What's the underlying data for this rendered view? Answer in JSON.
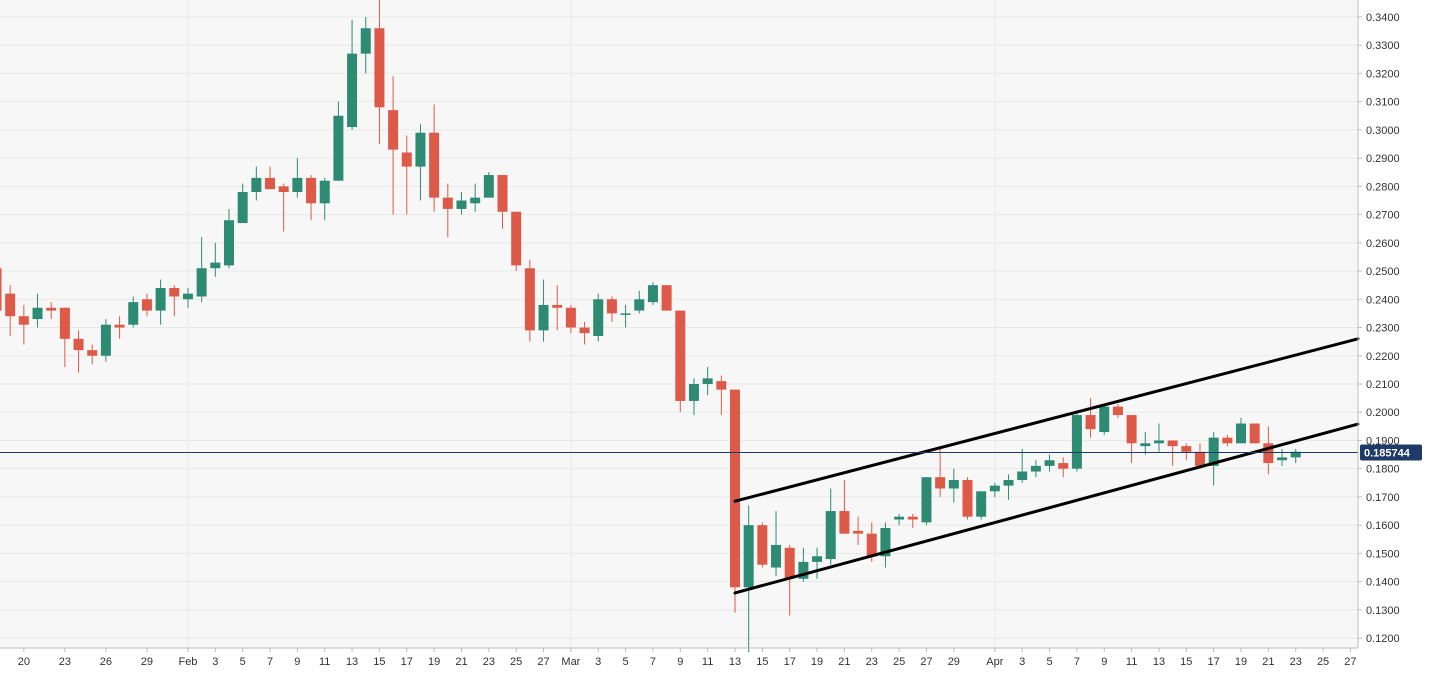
{
  "chart_data": {
    "type": "candlestick",
    "x_ticks": [
      "20",
      "23",
      "26",
      "29",
      "Feb",
      "3",
      "5",
      "7",
      "9",
      "11",
      "13",
      "15",
      "17",
      "19",
      "21",
      "23",
      "25",
      "27",
      "Mar",
      "3",
      "5",
      "7",
      "9",
      "11",
      "13",
      "15",
      "17",
      "19",
      "21",
      "23",
      "25",
      "27",
      "29",
      "Apr",
      "3",
      "5",
      "7",
      "9",
      "11",
      "13",
      "15",
      "17",
      "19",
      "21",
      "23",
      "25",
      "27"
    ],
    "y_ticks": [
      "0.3400",
      "0.3300",
      "0.3200",
      "0.3100",
      "0.3000",
      "0.2900",
      "0.2800",
      "0.2700",
      "0.2600",
      "0.2500",
      "0.2400",
      "0.2300",
      "0.2200",
      "0.2100",
      "0.2000",
      "0.1900",
      "0.1800",
      "0.1700",
      "0.1600",
      "0.1500",
      "0.1400",
      "0.1300",
      "0.1200"
    ],
    "ylim": [
      0.1165,
      0.346
    ],
    "current_price": 0.185744,
    "current_price_label": "0.185744",
    "candles": [
      {
        "date": "Jan 18",
        "o": 0.251,
        "h": 0.252,
        "l": 0.232,
        "c": 0.236
      },
      {
        "date": "Jan 19",
        "o": 0.242,
        "h": 0.245,
        "l": 0.227,
        "c": 0.234
      },
      {
        "date": "Jan 20",
        "o": 0.234,
        "h": 0.238,
        "l": 0.224,
        "c": 0.231
      },
      {
        "date": "Jan 21",
        "o": 0.233,
        "h": 0.242,
        "l": 0.23,
        "c": 0.237
      },
      {
        "date": "Jan 22",
        "o": 0.237,
        "h": 0.239,
        "l": 0.233,
        "c": 0.236
      },
      {
        "date": "Jan 23",
        "o": 0.237,
        "h": 0.237,
        "l": 0.216,
        "c": 0.226
      },
      {
        "date": "Jan 24",
        "o": 0.226,
        "h": 0.229,
        "l": 0.214,
        "c": 0.222
      },
      {
        "date": "Jan 25",
        "o": 0.222,
        "h": 0.224,
        "l": 0.217,
        "c": 0.22
      },
      {
        "date": "Jan 26",
        "o": 0.22,
        "h": 0.233,
        "l": 0.218,
        "c": 0.231
      },
      {
        "date": "Jan 27",
        "o": 0.231,
        "h": 0.234,
        "l": 0.226,
        "c": 0.23
      },
      {
        "date": "Jan 28",
        "o": 0.231,
        "h": 0.241,
        "l": 0.23,
        "c": 0.239
      },
      {
        "date": "Jan 29",
        "o": 0.24,
        "h": 0.242,
        "l": 0.234,
        "c": 0.236
      },
      {
        "date": "Jan 30",
        "o": 0.236,
        "h": 0.247,
        "l": 0.231,
        "c": 0.244
      },
      {
        "date": "Jan 31",
        "o": 0.244,
        "h": 0.245,
        "l": 0.234,
        "c": 0.241
      },
      {
        "date": "Feb 1",
        "o": 0.24,
        "h": 0.244,
        "l": 0.237,
        "c": 0.242
      },
      {
        "date": "Feb 2",
        "o": 0.241,
        "h": 0.262,
        "l": 0.239,
        "c": 0.251
      },
      {
        "date": "Feb 3",
        "o": 0.251,
        "h": 0.26,
        "l": 0.248,
        "c": 0.253
      },
      {
        "date": "Feb 4",
        "o": 0.252,
        "h": 0.272,
        "l": 0.251,
        "c": 0.268
      },
      {
        "date": "Feb 5",
        "o": 0.267,
        "h": 0.281,
        "l": 0.267,
        "c": 0.278
      },
      {
        "date": "Feb 6",
        "o": 0.278,
        "h": 0.287,
        "l": 0.275,
        "c": 0.283
      },
      {
        "date": "Feb 7",
        "o": 0.283,
        "h": 0.287,
        "l": 0.279,
        "c": 0.279
      },
      {
        "date": "Feb 8",
        "o": 0.28,
        "h": 0.281,
        "l": 0.264,
        "c": 0.278
      },
      {
        "date": "Feb 9",
        "o": 0.278,
        "h": 0.29,
        "l": 0.276,
        "c": 0.283
      },
      {
        "date": "Feb 10",
        "o": 0.283,
        "h": 0.284,
        "l": 0.268,
        "c": 0.274
      },
      {
        "date": "Feb 11",
        "o": 0.274,
        "h": 0.283,
        "l": 0.268,
        "c": 0.282
      },
      {
        "date": "Feb 12",
        "o": 0.282,
        "h": 0.31,
        "l": 0.282,
        "c": 0.305
      },
      {
        "date": "Feb 13",
        "o": 0.301,
        "h": 0.339,
        "l": 0.3,
        "c": 0.327
      },
      {
        "date": "Feb 14",
        "o": 0.327,
        "h": 0.34,
        "l": 0.32,
        "c": 0.336
      },
      {
        "date": "Feb 15",
        "o": 0.336,
        "h": 0.346,
        "l": 0.295,
        "c": 0.308
      },
      {
        "date": "Feb 16",
        "o": 0.307,
        "h": 0.319,
        "l": 0.27,
        "c": 0.293
      },
      {
        "date": "Feb 17",
        "o": 0.292,
        "h": 0.298,
        "l": 0.27,
        "c": 0.287
      },
      {
        "date": "Feb 18",
        "o": 0.287,
        "h": 0.302,
        "l": 0.275,
        "c": 0.299
      },
      {
        "date": "Feb 19",
        "o": 0.299,
        "h": 0.309,
        "l": 0.271,
        "c": 0.276
      },
      {
        "date": "Feb 20",
        "o": 0.276,
        "h": 0.281,
        "l": 0.262,
        "c": 0.272
      },
      {
        "date": "Feb 21",
        "o": 0.272,
        "h": 0.278,
        "l": 0.27,
        "c": 0.275
      },
      {
        "date": "Feb 22",
        "o": 0.274,
        "h": 0.281,
        "l": 0.271,
        "c": 0.276
      },
      {
        "date": "Feb 23",
        "o": 0.276,
        "h": 0.285,
        "l": 0.276,
        "c": 0.284
      },
      {
        "date": "Feb 24",
        "o": 0.284,
        "h": 0.284,
        "l": 0.265,
        "c": 0.271
      },
      {
        "date": "Feb 25",
        "o": 0.271,
        "h": 0.271,
        "l": 0.25,
        "c": 0.252
      },
      {
        "date": "Feb 26",
        "o": 0.251,
        "h": 0.254,
        "l": 0.225,
        "c": 0.229
      },
      {
        "date": "Feb 27",
        "o": 0.229,
        "h": 0.247,
        "l": 0.225,
        "c": 0.238
      },
      {
        "date": "Feb 28",
        "o": 0.238,
        "h": 0.245,
        "l": 0.229,
        "c": 0.237
      },
      {
        "date": "Mar 1",
        "o": 0.237,
        "h": 0.238,
        "l": 0.228,
        "c": 0.23
      },
      {
        "date": "Mar 2",
        "o": 0.23,
        "h": 0.232,
        "l": 0.224,
        "c": 0.228
      },
      {
        "date": "Mar 3",
        "o": 0.227,
        "h": 0.242,
        "l": 0.225,
        "c": 0.24
      },
      {
        "date": "Mar 4",
        "o": 0.24,
        "h": 0.241,
        "l": 0.232,
        "c": 0.235
      },
      {
        "date": "Mar 5",
        "o": 0.235,
        "h": 0.238,
        "l": 0.23,
        "c": 0.235
      },
      {
        "date": "Mar 6",
        "o": 0.236,
        "h": 0.243,
        "l": 0.235,
        "c": 0.24
      },
      {
        "date": "Mar 7",
        "o": 0.239,
        "h": 0.246,
        "l": 0.238,
        "c": 0.245
      },
      {
        "date": "Mar 8",
        "o": 0.245,
        "h": 0.245,
        "l": 0.236,
        "c": 0.236
      },
      {
        "date": "Mar 9",
        "o": 0.236,
        "h": 0.236,
        "l": 0.2,
        "c": 0.204
      },
      {
        "date": "Mar 10",
        "o": 0.204,
        "h": 0.212,
        "l": 0.199,
        "c": 0.21
      },
      {
        "date": "Mar 11",
        "o": 0.21,
        "h": 0.216,
        "l": 0.206,
        "c": 0.212
      },
      {
        "date": "Mar 12",
        "o": 0.211,
        "h": 0.213,
        "l": 0.199,
        "c": 0.208
      },
      {
        "date": "Mar 13",
        "o": 0.208,
        "h": 0.208,
        "l": 0.129,
        "c": 0.138
      },
      {
        "date": "Mar 14",
        "o": 0.138,
        "h": 0.167,
        "l": 0.115,
        "c": 0.16
      },
      {
        "date": "Mar 15",
        "o": 0.16,
        "h": 0.161,
        "l": 0.145,
        "c": 0.146
      },
      {
        "date": "Mar 16",
        "o": 0.145,
        "h": 0.165,
        "l": 0.142,
        "c": 0.153
      },
      {
        "date": "Mar 17",
        "o": 0.152,
        "h": 0.153,
        "l": 0.128,
        "c": 0.141
      },
      {
        "date": "Mar 18",
        "o": 0.141,
        "h": 0.152,
        "l": 0.14,
        "c": 0.147
      },
      {
        "date": "Mar 19",
        "o": 0.147,
        "h": 0.152,
        "l": 0.141,
        "c": 0.149
      },
      {
        "date": "Mar 20",
        "o": 0.148,
        "h": 0.173,
        "l": 0.146,
        "c": 0.165
      },
      {
        "date": "Mar 21",
        "o": 0.165,
        "h": 0.176,
        "l": 0.157,
        "c": 0.157
      },
      {
        "date": "Mar 22",
        "o": 0.158,
        "h": 0.163,
        "l": 0.153,
        "c": 0.157
      },
      {
        "date": "Mar 23",
        "o": 0.157,
        "h": 0.161,
        "l": 0.147,
        "c": 0.149
      },
      {
        "date": "Mar 24",
        "o": 0.149,
        "h": 0.161,
        "l": 0.145,
        "c": 0.159
      },
      {
        "date": "Mar 25",
        "o": 0.162,
        "h": 0.164,
        "l": 0.16,
        "c": 0.163
      },
      {
        "date": "Mar 26",
        "o": 0.163,
        "h": 0.164,
        "l": 0.159,
        "c": 0.162
      },
      {
        "date": "Mar 27",
        "o": 0.161,
        "h": 0.177,
        "l": 0.16,
        "c": 0.177
      },
      {
        "date": "Mar 28",
        "o": 0.177,
        "h": 0.188,
        "l": 0.17,
        "c": 0.173
      },
      {
        "date": "Mar 29",
        "o": 0.173,
        "h": 0.18,
        "l": 0.168,
        "c": 0.176
      },
      {
        "date": "Mar 30",
        "o": 0.176,
        "h": 0.177,
        "l": 0.162,
        "c": 0.163
      },
      {
        "date": "Mar 31",
        "o": 0.163,
        "h": 0.172,
        "l": 0.162,
        "c": 0.172
      },
      {
        "date": "Apr 1",
        "o": 0.172,
        "h": 0.175,
        "l": 0.17,
        "c": 0.174
      },
      {
        "date": "Apr 2",
        "o": 0.174,
        "h": 0.178,
        "l": 0.169,
        "c": 0.176
      },
      {
        "date": "Apr 3",
        "o": 0.176,
        "h": 0.187,
        "l": 0.175,
        "c": 0.179
      },
      {
        "date": "Apr 4",
        "o": 0.179,
        "h": 0.183,
        "l": 0.177,
        "c": 0.181
      },
      {
        "date": "Apr 5",
        "o": 0.181,
        "h": 0.185,
        "l": 0.179,
        "c": 0.183
      },
      {
        "date": "Apr 6",
        "o": 0.182,
        "h": 0.184,
        "l": 0.177,
        "c": 0.18
      },
      {
        "date": "Apr 7",
        "o": 0.18,
        "h": 0.2,
        "l": 0.179,
        "c": 0.199
      },
      {
        "date": "Apr 8",
        "o": 0.199,
        "h": 0.205,
        "l": 0.191,
        "c": 0.194
      },
      {
        "date": "Apr 9",
        "o": 0.193,
        "h": 0.203,
        "l": 0.192,
        "c": 0.202
      },
      {
        "date": "Apr 10",
        "o": 0.202,
        "h": 0.203,
        "l": 0.198,
        "c": 0.199
      },
      {
        "date": "Apr 11",
        "o": 0.199,
        "h": 0.199,
        "l": 0.182,
        "c": 0.189
      },
      {
        "date": "Apr 12",
        "o": 0.188,
        "h": 0.193,
        "l": 0.185,
        "c": 0.189
      },
      {
        "date": "Apr 13",
        "o": 0.189,
        "h": 0.196,
        "l": 0.186,
        "c": 0.19
      },
      {
        "date": "Apr 14",
        "o": 0.19,
        "h": 0.19,
        "l": 0.181,
        "c": 0.188
      },
      {
        "date": "Apr 15",
        "o": 0.188,
        "h": 0.189,
        "l": 0.183,
        "c": 0.186
      },
      {
        "date": "Apr 16",
        "o": 0.186,
        "h": 0.189,
        "l": 0.18,
        "c": 0.181
      },
      {
        "date": "Apr 17",
        "o": 0.181,
        "h": 0.193,
        "l": 0.174,
        "c": 0.191
      },
      {
        "date": "Apr 18",
        "o": 0.191,
        "h": 0.192,
        "l": 0.188,
        "c": 0.189
      },
      {
        "date": "Apr 19",
        "o": 0.189,
        "h": 0.198,
        "l": 0.189,
        "c": 0.196
      },
      {
        "date": "Apr 20",
        "o": 0.196,
        "h": 0.196,
        "l": 0.189,
        "c": 0.189
      },
      {
        "date": "Apr 21",
        "o": 0.189,
        "h": 0.195,
        "l": 0.178,
        "c": 0.182
      },
      {
        "date": "Apr 22",
        "o": 0.183,
        "h": 0.187,
        "l": 0.181,
        "c": 0.184
      },
      {
        "date": "Apr 23",
        "o": 0.184,
        "h": 0.187,
        "l": 0.182,
        "c": 0.186
      }
    ],
    "trendlines": [
      {
        "from": {
          "date": "Mar 13",
          "price": 0.1685
        },
        "to": {
          "date": "May 1",
          "price": 0.226
        }
      },
      {
        "from": {
          "date": "Mar 13",
          "price": 0.136
        },
        "to": {
          "date": "May 1",
          "price": 0.1958
        }
      }
    ],
    "colors": {
      "up": "#2e8b73",
      "down": "#dd5a48",
      "grid": "#e9e9e9",
      "plot_bg": "#f7f7f7",
      "price_line": "#1e3a68",
      "price_tag_bg": "#1e3a68",
      "trendline": "#000000",
      "axis_text": "#333333"
    },
    "grid": true
  }
}
